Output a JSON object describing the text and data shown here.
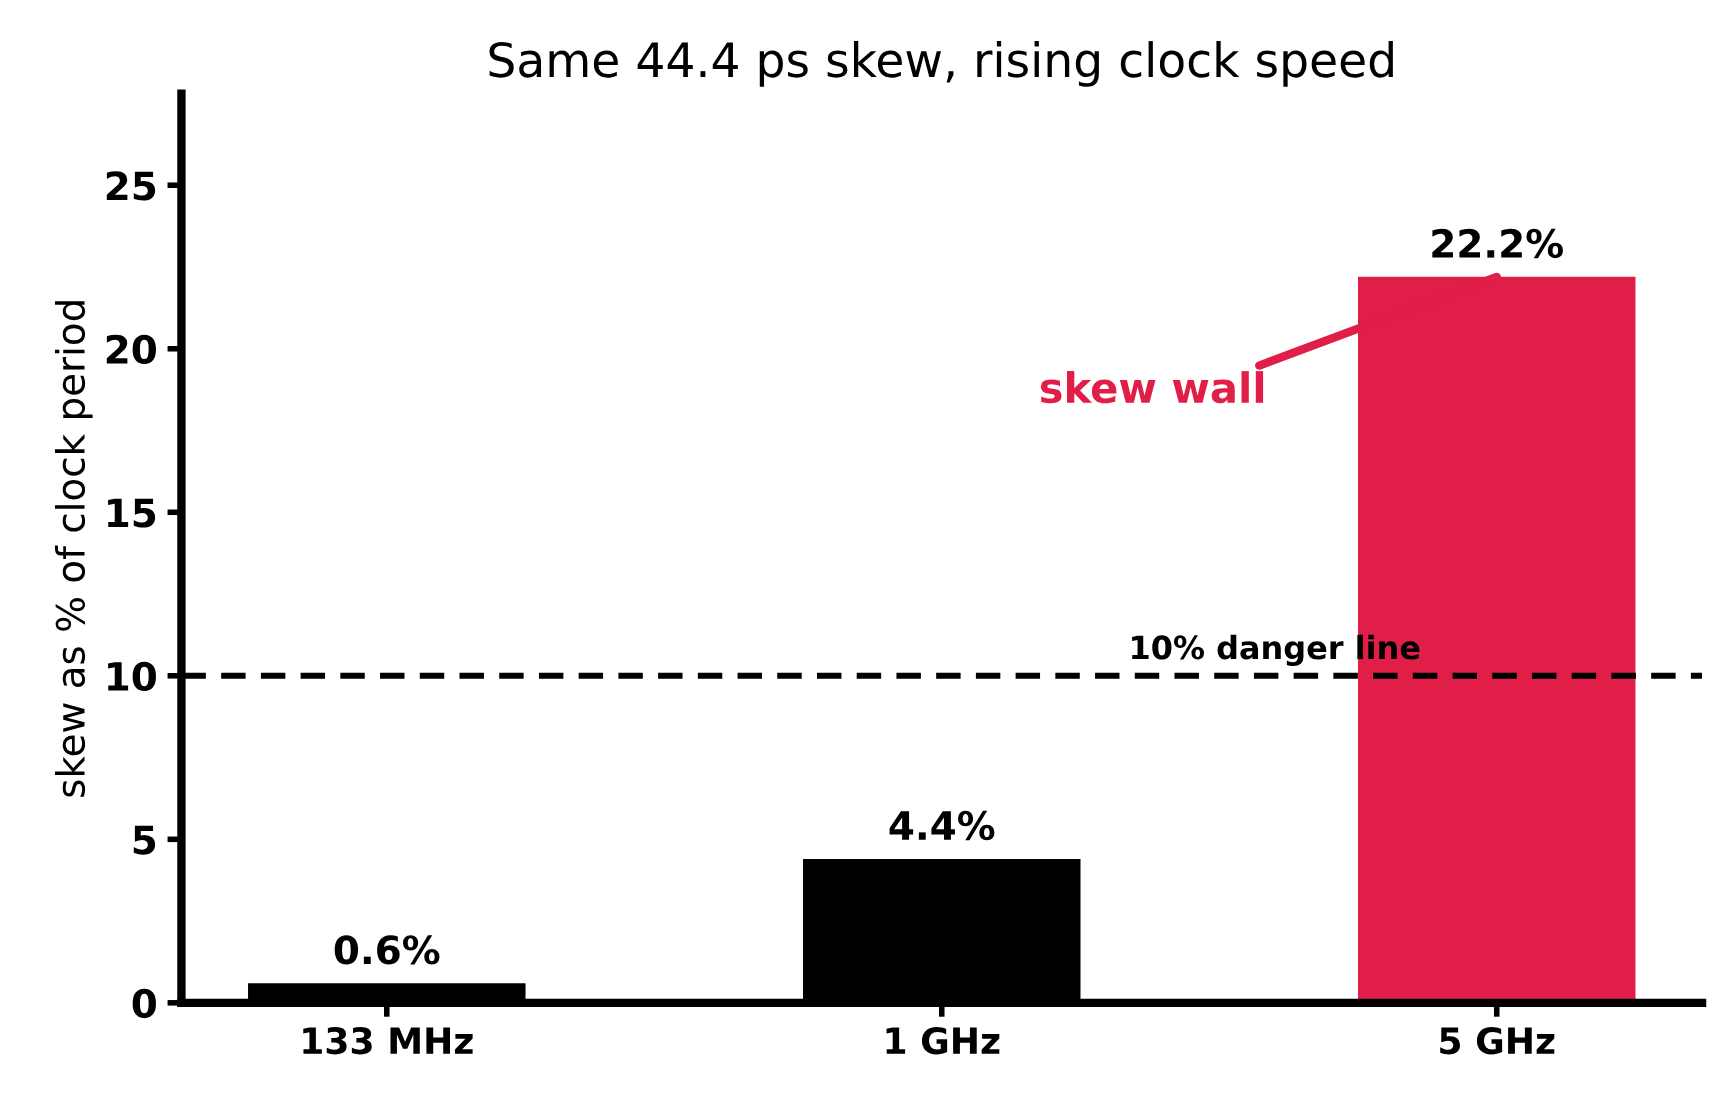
{
  "chart_data": {
    "type": "bar",
    "title": "Same 44.4 ps skew, rising clock speed",
    "ylabel": "skew as % of clock period",
    "categories": [
      "133 MHz",
      "1 GHz",
      "5 GHz"
    ],
    "values": [
      0.6,
      4.4,
      22.2
    ],
    "colors": [
      "#000000",
      "#000000",
      "#e01e48"
    ],
    "value_labels": [
      "0.6%",
      "4.4%",
      "22.2%"
    ],
    "ylim": [
      0,
      27.8
    ],
    "yticks": [
      0,
      5,
      10,
      15,
      20,
      25
    ],
    "grid": false,
    "ref_lines": [
      {
        "axis": "y",
        "value": 10,
        "label": "10% danger line",
        "color": "#000000",
        "line_style": "dashed"
      }
    ],
    "annotations": [
      {
        "text": "skew wall",
        "x": "5 GHz",
        "y": 22.2
      }
    ]
  }
}
